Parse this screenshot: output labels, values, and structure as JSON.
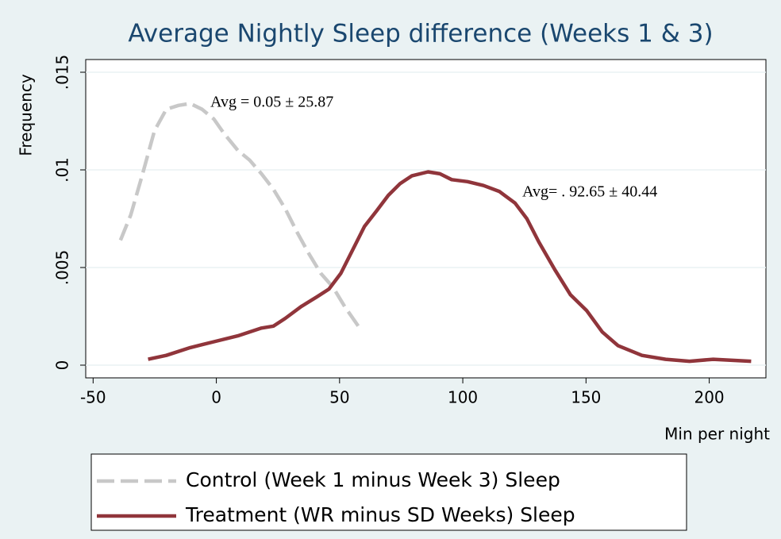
{
  "chart_data": {
    "type": "line",
    "title": "Average Nightly Sleep difference (Weeks 1 & 3)",
    "x_label": "Min per night",
    "y_label": "Frequency",
    "xlim": [
      -53,
      223
    ],
    "ylim": [
      -0.00065,
      0.01565
    ],
    "xticks": [
      -50,
      0,
      50,
      100,
      150,
      200
    ],
    "yticks": [
      {
        "value": 0,
        "label": "0"
      },
      {
        "value": 0.005,
        "label": ".005"
      },
      {
        "value": 0.01,
        "label": ".01"
      },
      {
        "value": 0.015,
        "label": ".015"
      }
    ],
    "grid": true,
    "annotations": [
      "Avg = 0.05 ± 25.87",
      "Avg= . 92.65 ± 40.44"
    ],
    "series": [
      {
        "name": "Control (Week 1 minus Week 3) Sleep",
        "color": "#c8c8c8",
        "dash": true,
        "x": [
          -38.9,
          -34.7,
          -29.9,
          -25.1,
          -20.3,
          -15.4,
          -10.6,
          -5.8,
          -1,
          2.9,
          8.7,
          13.5,
          18.3,
          23.2,
          28,
          32.8,
          37.6,
          42.4,
          47.3,
          52.1,
          57.6
        ],
        "values": [
          0.0064,
          0.0077,
          0.0098,
          0.012,
          0.0131,
          0.0133,
          0.0134,
          0.0131,
          0.0126,
          0.0119,
          0.011,
          0.0105,
          0.0098,
          0.009,
          0.008,
          0.0068,
          0.0057,
          0.0047,
          0.004,
          0.003,
          0.002
        ]
      },
      {
        "name": "Treatment (WR minus SD Weeks) Sleep",
        "color": "#90353b",
        "dash": false,
        "x": [
          -27.7,
          -20.3,
          -10.6,
          -1,
          8.7,
          18.3,
          23.2,
          28,
          34.4,
          40.8,
          45.7,
          50.5,
          55.3,
          60.1,
          65,
          69.8,
          74.6,
          79.4,
          85.9,
          90.7,
          95.5,
          101.9,
          108.4,
          114.8,
          121.2,
          126,
          130.9,
          137.3,
          143.7,
          150.2,
          156.6,
          163,
          172.7,
          182.3,
          192,
          201.6,
          217
        ],
        "values": [
          0.0003,
          0.0005,
          0.0009,
          0.0012,
          0.0015,
          0.0019,
          0.002,
          0.0024,
          0.003,
          0.0035,
          0.0039,
          0.0047,
          0.0059,
          0.0071,
          0.0079,
          0.0087,
          0.0093,
          0.0097,
          0.0099,
          0.0098,
          0.0095,
          0.0094,
          0.0092,
          0.0089,
          0.0083,
          0.0075,
          0.0063,
          0.0049,
          0.0036,
          0.0028,
          0.0017,
          0.001,
          0.0005,
          0.0003,
          0.0002,
          0.0003,
          0.0002
        ]
      }
    ]
  }
}
